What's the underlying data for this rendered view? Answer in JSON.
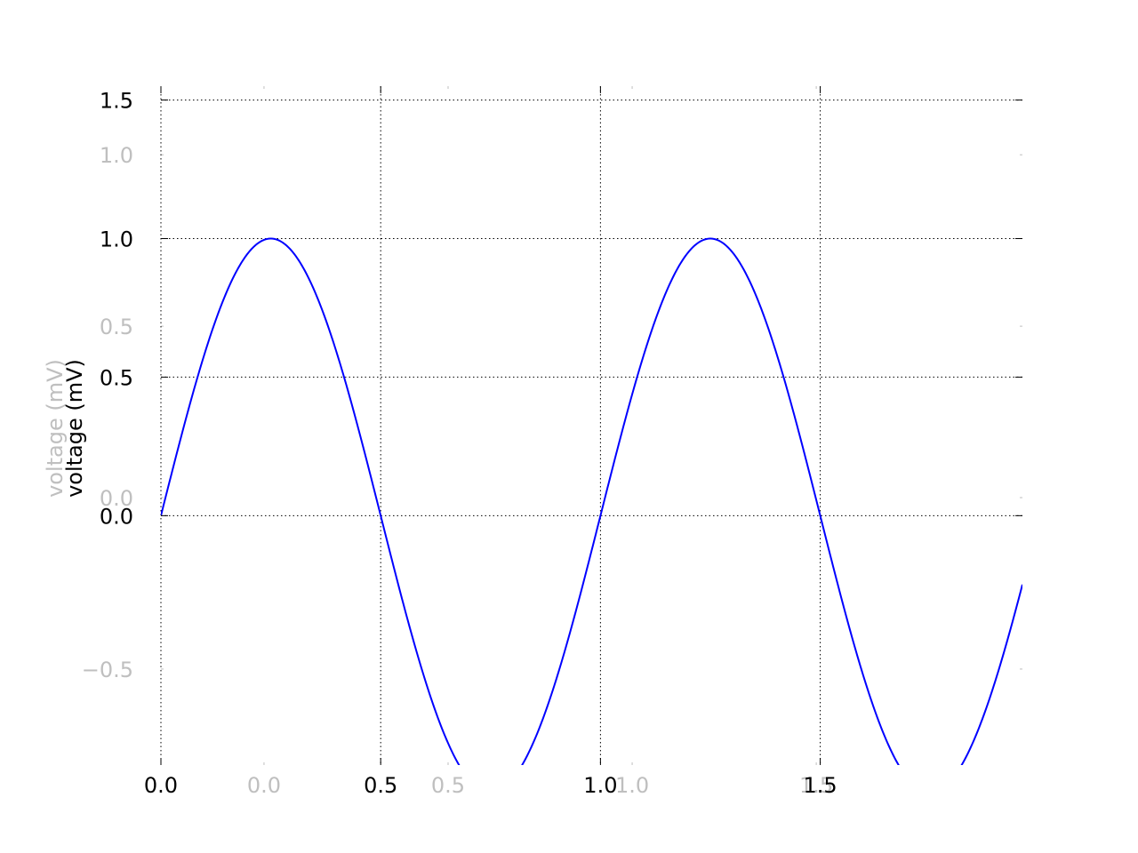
{
  "chart_data": {
    "type": "line",
    "title": "",
    "xlabel": "",
    "ylabel": "voltage (mV)",
    "xlim": [
      0,
      1.96
    ],
    "ylim": [
      -0.9,
      1.55
    ],
    "grid": true,
    "grid_style": "dotted",
    "series": [
      {
        "color": "#0000ff",
        "function": "sin(2*pi*x)",
        "x": [
          0.0,
          0.05,
          0.1,
          0.15,
          0.2,
          0.25,
          0.3,
          0.35,
          0.4,
          0.45,
          0.5,
          0.55,
          0.6,
          0.65,
          0.7,
          0.75,
          0.8,
          0.85,
          0.9,
          0.95,
          1.0,
          1.05,
          1.1,
          1.15,
          1.2,
          1.25,
          1.3,
          1.35,
          1.4,
          1.45,
          1.5,
          1.55,
          1.6,
          1.65,
          1.7,
          1.75,
          1.8,
          1.85,
          1.9,
          1.95,
          1.96
        ],
        "y": [
          0.0,
          0.309,
          0.588,
          0.809,
          0.951,
          1.0,
          0.951,
          0.809,
          0.588,
          0.309,
          0.0,
          -0.309,
          -0.588,
          -0.809,
          -0.951,
          -1.0,
          -0.951,
          -0.809,
          -0.588,
          -0.309,
          0.0,
          0.309,
          0.588,
          0.809,
          0.951,
          1.0,
          0.951,
          0.809,
          0.588,
          0.309,
          0.0,
          -0.309,
          -0.588,
          -0.809,
          -0.951,
          -1.0,
          -0.951,
          -0.809,
          -0.588,
          -0.309,
          -0.249
        ]
      }
    ],
    "x_ticks": [
      {
        "value": 0.0,
        "label": "0.0"
      },
      {
        "value": 0.5,
        "label": "0.5"
      },
      {
        "value": 1.0,
        "label": "1.0"
      },
      {
        "value": 1.5,
        "label": "1.5"
      }
    ],
    "y_ticks": [
      {
        "value": 0.0,
        "label": "0.0"
      },
      {
        "value": 0.5,
        "label": "0.5"
      },
      {
        "value": 1.0,
        "label": "1.0"
      },
      {
        "value": 1.5,
        "label": "1.5"
      }
    ],
    "ghost_axes": {
      "color": "#bfbfbf",
      "xlim": [
        -0.28,
        2.06
      ],
      "ylim": [
        -0.78,
        1.2
      ],
      "x_ticks": [
        {
          "value": 0.0,
          "label": "0.0"
        },
        {
          "value": 0.5,
          "label": "0.5"
        },
        {
          "value": 1.0,
          "label": "1.0"
        },
        {
          "value": 1.5,
          "label": "1.5"
        }
      ],
      "y_ticks": [
        {
          "value": -0.5,
          "label": "−0.5"
        },
        {
          "value": 0.0,
          "label": "0.0"
        },
        {
          "value": 0.5,
          "label": "0.5"
        },
        {
          "value": 1.0,
          "label": "1.0"
        }
      ],
      "ylabel": "voltage (mV)"
    }
  }
}
